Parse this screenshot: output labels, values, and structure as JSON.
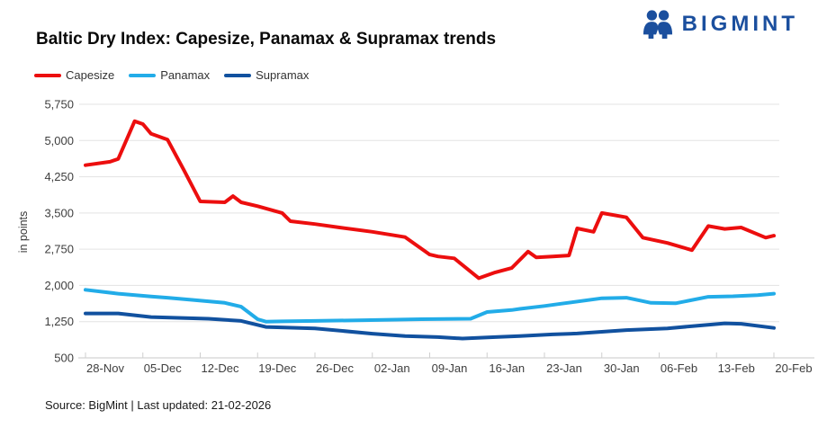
{
  "header": {
    "title": "Baltic Dry Index: Capesize, Panamax & Supramax trends",
    "logo": {
      "text": "BIGMINT",
      "color": "#1B4F9E",
      "icon": "two-people-icon"
    }
  },
  "legend": {
    "items": [
      {
        "label": "Capesize",
        "color": "#EC0E0E"
      },
      {
        "label": "Panamax",
        "color": "#22ACE8"
      },
      {
        "label": "Supramax",
        "color": "#11519F"
      }
    ]
  },
  "footer": {
    "text": "Source: BigMint | Last updated: 21-02-2026"
  },
  "chart_data": {
    "type": "line",
    "title": "Baltic Dry Index: Capesize, Panamax & Supramax trends",
    "xlabel": "",
    "ylabel": "in points",
    "ylim": [
      500,
      5750
    ],
    "yticks": [
      500,
      1250,
      2000,
      2750,
      3500,
      4250,
      5000,
      5750
    ],
    "ytick_labels": [
      "500",
      "1,250",
      "2,000",
      "2,750",
      "3,500",
      "4,250",
      "5,000",
      "5,750"
    ],
    "xtick_labels": [
      "28-Nov",
      "05-Dec",
      "12-Dec",
      "19-Dec",
      "26-Dec",
      "02-Jan",
      "09-Jan",
      "16-Jan",
      "23-Jan",
      "30-Jan",
      "06-Feb",
      "13-Feb",
      "20-Feb"
    ],
    "x_unit": "days from 28-Nov (weekly ticks every 7 days)",
    "x_range": [
      0,
      84
    ],
    "grid": true,
    "legend_position": "top-left",
    "series": [
      {
        "name": "Capesize",
        "color": "#EC0E0E",
        "points": [
          [
            0,
            4490
          ],
          [
            3,
            4560
          ],
          [
            4,
            4620
          ],
          [
            6,
            5400
          ],
          [
            7,
            5340
          ],
          [
            8,
            5140
          ],
          [
            10,
            5020
          ],
          [
            12,
            4390
          ],
          [
            14,
            3740
          ],
          [
            17,
            3720
          ],
          [
            18,
            3850
          ],
          [
            19,
            3720
          ],
          [
            21,
            3640
          ],
          [
            24,
            3500
          ],
          [
            25,
            3330
          ],
          [
            28,
            3270
          ],
          [
            31,
            3200
          ],
          [
            35,
            3110
          ],
          [
            39,
            3000
          ],
          [
            42,
            2640
          ],
          [
            43,
            2600
          ],
          [
            45,
            2560
          ],
          [
            48,
            2150
          ],
          [
            50,
            2270
          ],
          [
            52,
            2360
          ],
          [
            54,
            2700
          ],
          [
            55,
            2580
          ],
          [
            57,
            2600
          ],
          [
            59,
            2620
          ],
          [
            60,
            3180
          ],
          [
            62,
            3110
          ],
          [
            63,
            3500
          ],
          [
            66,
            3410
          ],
          [
            68,
            2990
          ],
          [
            71,
            2880
          ],
          [
            74,
            2730
          ],
          [
            76,
            3230
          ],
          [
            78,
            3170
          ],
          [
            80,
            3200
          ],
          [
            83,
            2990
          ],
          [
            84,
            3030
          ]
        ]
      },
      {
        "name": "Panamax",
        "color": "#22ACE8",
        "points": [
          [
            0,
            1910
          ],
          [
            4,
            1830
          ],
          [
            8,
            1770
          ],
          [
            10,
            1745
          ],
          [
            13,
            1700
          ],
          [
            17,
            1640
          ],
          [
            19,
            1560
          ],
          [
            21,
            1300
          ],
          [
            22,
            1250
          ],
          [
            24,
            1255
          ],
          [
            28,
            1265
          ],
          [
            34,
            1280
          ],
          [
            41,
            1300
          ],
          [
            47,
            1310
          ],
          [
            49,
            1450
          ],
          [
            52,
            1490
          ],
          [
            53,
            1515
          ],
          [
            56,
            1575
          ],
          [
            58,
            1620
          ],
          [
            63,
            1735
          ],
          [
            66,
            1745
          ],
          [
            69,
            1640
          ],
          [
            72,
            1630
          ],
          [
            76,
            1765
          ],
          [
            79,
            1775
          ],
          [
            82,
            1800
          ],
          [
            84,
            1830
          ]
        ]
      },
      {
        "name": "Supramax",
        "color": "#11519F",
        "points": [
          [
            0,
            1420
          ],
          [
            4,
            1420
          ],
          [
            8,
            1345
          ],
          [
            15,
            1310
          ],
          [
            19,
            1265
          ],
          [
            22,
            1140
          ],
          [
            28,
            1110
          ],
          [
            35,
            1000
          ],
          [
            39,
            950
          ],
          [
            43,
            930
          ],
          [
            46,
            900
          ],
          [
            50,
            930
          ],
          [
            53,
            950
          ],
          [
            57,
            985
          ],
          [
            60,
            1005
          ],
          [
            66,
            1075
          ],
          [
            71,
            1110
          ],
          [
            75,
            1170
          ],
          [
            78,
            1215
          ],
          [
            80,
            1205
          ],
          [
            84,
            1120
          ]
        ]
      }
    ]
  }
}
